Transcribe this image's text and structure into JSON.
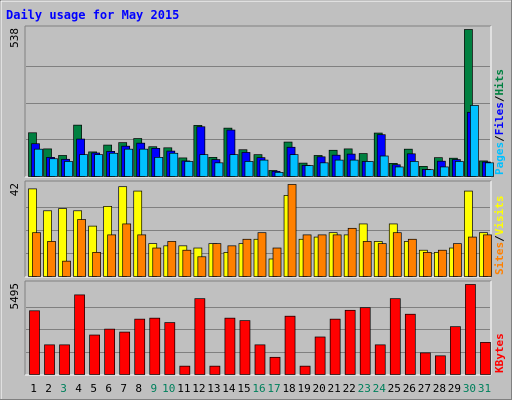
{
  "chart_data": [
    {
      "type": "bar",
      "title": "Daily usage for May 2015",
      "categories": [
        "1",
        "2",
        "3",
        "4",
        "5",
        "6",
        "7",
        "8",
        "9",
        "10",
        "11",
        "12",
        "13",
        "14",
        "15",
        "16",
        "17",
        "18",
        "19",
        "20",
        "21",
        "22",
        "23",
        "24",
        "25",
        "26",
        "27",
        "28",
        "29",
        "30",
        "31"
      ],
      "weekend_days": [
        "3",
        "9",
        "10",
        "16",
        "17",
        "23",
        "24",
        "30",
        "31"
      ],
      "panels": [
        {
          "name": "hits-files-pages",
          "ylim": [
            0,
            538
          ],
          "y_tick_label": "538",
          "side_labels": [
            "Pages",
            "Files",
            "Hits"
          ],
          "series": [
            {
              "name": "Hits",
              "color": "#008040",
              "values": [
                160,
                101,
                77,
                188,
                90,
                115,
                124,
                139,
                109,
                105,
                68,
                187,
                70,
                177,
                98,
                80,
                22,
                126,
                49,
                77,
                96,
                101,
                84,
                159,
                48,
                100,
                37,
                69,
                67,
                538,
                57
              ]
            },
            {
              "name": "Files",
              "color": "#0000ff",
              "values": [
                120,
                70,
                63,
                137,
                86,
                92,
                111,
                122,
                103,
                93,
                57,
                182,
                62,
                170,
                88,
                69,
                19,
                107,
                41,
                72,
                78,
                82,
                55,
                153,
                43,
                83,
                26,
                56,
                62,
                235,
                53
              ]
            },
            {
              "name": "Pages",
              "color": "#00c0ff",
              "values": [
                100,
                65,
                55,
                80,
                80,
                85,
                100,
                100,
                70,
                85,
                55,
                80,
                50,
                80,
                55,
                60,
                15,
                80,
                40,
                50,
                60,
                60,
                55,
                75,
                35,
                55,
                25,
                35,
                55,
                260,
                50
              ]
            }
          ]
        },
        {
          "name": "visits-sites",
          "ylim": [
            0,
            42
          ],
          "y_tick_label": "42",
          "side_labels": [
            "Sites",
            "Visits"
          ],
          "series": [
            {
              "name": "Visits",
              "color": "#ffff00",
              "values": [
                40,
                30,
                31,
                30,
                23,
                32,
                41,
                39,
                15,
                14,
                14,
                13,
                15,
                11,
                15,
                17,
                8,
                37,
                17,
                18,
                20,
                19,
                24,
                16,
                24,
                16,
                12,
                11,
                13,
                39,
                20
              ]
            },
            {
              "name": "Sites",
              "color": "#ff8000",
              "values": [
                20,
                16,
                7,
                26,
                11,
                19,
                24,
                19,
                13,
                16,
                12,
                9,
                15,
                14,
                17,
                20,
                13,
                42,
                19,
                19,
                19,
                22,
                16,
                15,
                20,
                17,
                11,
                12,
                15,
                18,
                19
              ]
            }
          ]
        },
        {
          "name": "kbytes",
          "ylim": [
            0,
            5495
          ],
          "y_tick_label": "5495",
          "side_labels": [
            "KBytes"
          ],
          "series": [
            {
              "name": "KBytes",
              "color": "#ff0000",
              "values": [
                3890,
                1810,
                1810,
                4860,
                2410,
                2770,
                2590,
                3380,
                3440,
                3170,
                510,
                4630,
                510,
                3440,
                3290,
                1810,
                1050,
                3560,
                510,
                2290,
                3380,
                3920,
                4080,
                1810,
                4630,
                3680,
                1320,
                1140,
                2920,
                5495,
                1960
              ]
            }
          ]
        }
      ]
    }
  ],
  "colors": {
    "background": "#c0c0c0",
    "plot_bg": "#c0c0c0",
    "gridline": "#808080",
    "title": "#0000ff",
    "weekday_label": "#000000",
    "weekend_label": "#00805c"
  }
}
